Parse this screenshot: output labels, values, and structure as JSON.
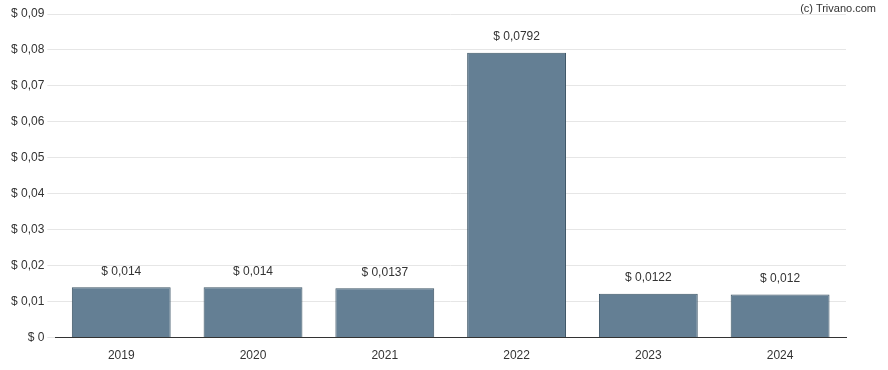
{
  "chart_data": {
    "type": "bar",
    "annotation": "(c) Trivano.com",
    "categories": [
      "2019",
      "2020",
      "2021",
      "2022",
      "2023",
      "2024"
    ],
    "values": [
      0.014,
      0.014,
      0.0137,
      0.0792,
      0.0122,
      0.012
    ],
    "value_labels": [
      "$ 0,014",
      "$ 0,014",
      "$ 0,0137",
      "$ 0,0792",
      "$ 0,0122",
      "$ 0,012"
    ],
    "data_labels": true,
    "color": "#647f94",
    "ylim": [
      0,
      0.09
    ],
    "yticks": [
      {
        "value": 0,
        "label": "$ 0"
      },
      {
        "value": 0.01,
        "label": "$ 0,01"
      },
      {
        "value": 0.02,
        "label": "$ 0,02"
      },
      {
        "value": 0.03,
        "label": "$ 0,03"
      },
      {
        "value": 0.04,
        "label": "$ 0,04"
      },
      {
        "value": 0.05,
        "label": "$ 0,05"
      },
      {
        "value": 0.06,
        "label": "$ 0,06"
      },
      {
        "value": 0.07,
        "label": "$ 0,07"
      },
      {
        "value": 0.08,
        "label": "$ 0,08"
      },
      {
        "value": 0.09,
        "label": "$ 0,09"
      }
    ],
    "grid": true
  }
}
